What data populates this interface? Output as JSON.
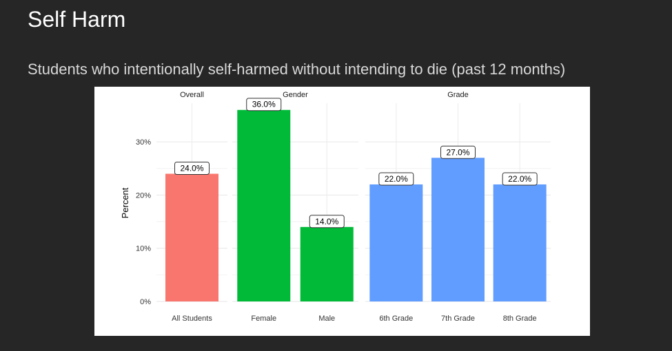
{
  "slide": {
    "title": "Self Harm",
    "subtitle": "Students who intentionally self-harmed without intending to die (past 12 months)"
  },
  "chart_data": {
    "type": "bar",
    "ylabel": "Percent",
    "ylim": [
      0,
      37
    ],
    "yticks": [
      {
        "value": 0,
        "label": "0%"
      },
      {
        "value": 10,
        "label": "10%"
      },
      {
        "value": 20,
        "label": "20%"
      },
      {
        "value": 30,
        "label": "30%"
      }
    ],
    "grid": true,
    "facets": [
      {
        "label": "Overall",
        "color": "#F8766D",
        "bars": [
          {
            "category": "All Students",
            "value": 24.0,
            "label": "24.0%"
          }
        ]
      },
      {
        "label": "Gender",
        "color": "#00BA38",
        "bars": [
          {
            "category": "Female",
            "value": 36.0,
            "label": "36.0%"
          },
          {
            "category": "Male",
            "value": 14.0,
            "label": "14.0%"
          }
        ]
      },
      {
        "label": "Grade",
        "color": "#619CFF",
        "bars": [
          {
            "category": "6th Grade",
            "value": 22.0,
            "label": "22.0%"
          },
          {
            "category": "7th Grade",
            "value": 27.0,
            "label": "27.0%"
          },
          {
            "category": "8th Grade",
            "value": 22.0,
            "label": "22.0%"
          }
        ]
      }
    ]
  }
}
